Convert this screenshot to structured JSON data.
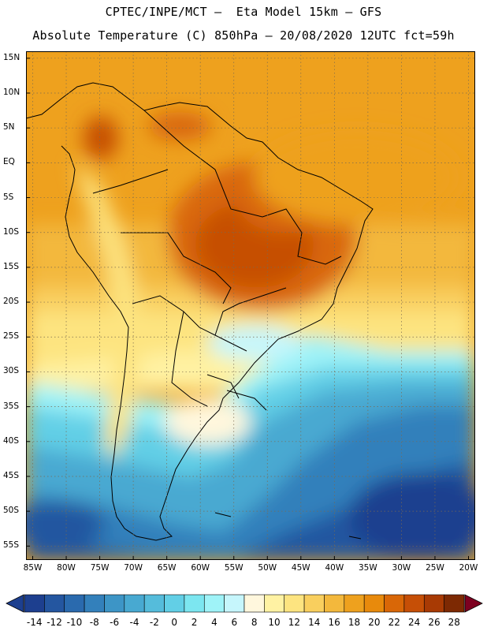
{
  "header": {
    "line1": "CPTEC/INPE/MCT –  Eta Model 15km – GFS",
    "line2": "Absolute Temperature (C) 850hPa – 20/08/2020 12UTC fct=59h"
  },
  "map": {
    "lat_labels": [
      "15N",
      "10N",
      "5N",
      "EQ",
      "5S",
      "10S",
      "15S",
      "20S",
      "25S",
      "30S",
      "35S",
      "40S",
      "45S",
      "50S",
      "55S"
    ],
    "lat_values": [
      15,
      10,
      5,
      0,
      -5,
      -10,
      -15,
      -20,
      -25,
      -30,
      -35,
      -40,
      -45,
      -50,
      -55
    ],
    "lon_labels": [
      "85W",
      "80W",
      "75W",
      "70W",
      "65W",
      "60W",
      "55W",
      "50W",
      "45W",
      "40W",
      "35W",
      "30W",
      "25W",
      "20W"
    ],
    "lon_values": [
      -85,
      -80,
      -75,
      -70,
      -65,
      -60,
      -55,
      -50,
      -45,
      -40,
      -35,
      -30,
      -25,
      -20
    ],
    "extent": {
      "lon_min": -86,
      "lon_max": -19,
      "lat_min": -57,
      "lat_max": 16
    },
    "field": {
      "variable": "Absolute Temperature",
      "units": "C",
      "level": "850hPa",
      "warm_core": "central Brazil 22-26 C",
      "cold_core": "South Atlantic / Southern Ocean -10 to -14 C"
    }
  },
  "colorbar": {
    "labels": [
      "-14",
      "-12",
      "-10",
      "-8",
      "-6",
      "-4",
      "-2",
      "0",
      "2",
      "4",
      "6",
      "8",
      "10",
      "12",
      "14",
      "16",
      "18",
      "20",
      "22",
      "24",
      "26",
      "28"
    ],
    "colors": [
      "#1d3f8f",
      "#2456a0",
      "#2a6aae",
      "#3380bb",
      "#3d95c6",
      "#48a9d1",
      "#55bcdb",
      "#62cfe6",
      "#7ce6f0",
      "#9ff3f8",
      "#c6f6fc",
      "#fff7dd",
      "#fff2a3",
      "#fde480",
      "#f9cf5e",
      "#f3b83c",
      "#eea11e",
      "#e88a0c",
      "#d96707",
      "#c64f06",
      "#a83a04",
      "#7d2903"
    ]
  }
}
